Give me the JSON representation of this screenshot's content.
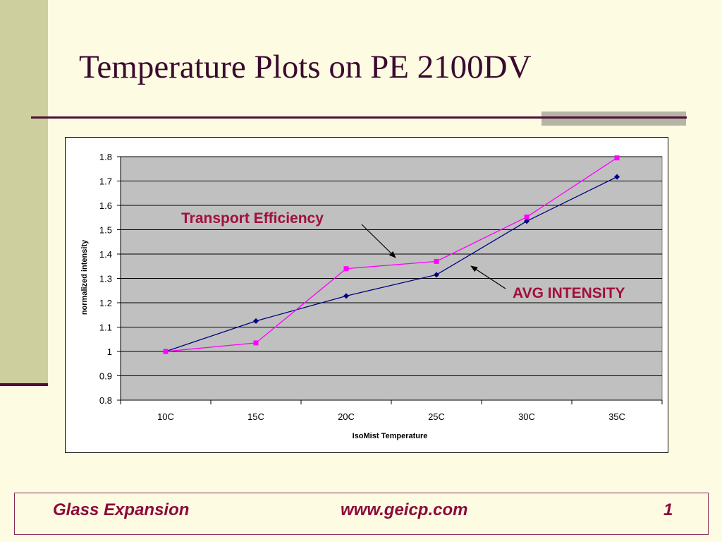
{
  "slide": {
    "title": "Temperature Plots on PE 2100DV"
  },
  "footer": {
    "company": "Glass Expansion",
    "url": "www.geicp.com",
    "page_number": "1"
  },
  "colors": {
    "background": "#FDFBE2",
    "left_bar": "#CECF9E",
    "accent_dark": "#4E0E3A",
    "footer_text": "#8C0B3A",
    "plot_area": "#C0C0C0",
    "series_avg_intensity": "#000080",
    "series_transport_efficiency": "#FF00FF",
    "annotation_text": "#A0103C"
  },
  "chart_data": {
    "type": "line",
    "categories": [
      "10C",
      "15C",
      "20C",
      "25C",
      "30C",
      "35C"
    ],
    "series": [
      {
        "name": "AVG INTENSITY",
        "marker": "diamond",
        "color": "#000080",
        "values": [
          1.0,
          1.125,
          1.228,
          1.315,
          1.535,
          1.717
        ]
      },
      {
        "name": "Transport Efficiency",
        "marker": "square",
        "color": "#FF00FF",
        "values": [
          1.0,
          1.035,
          1.34,
          1.37,
          1.552,
          1.795
        ]
      }
    ],
    "xlabel": "IsoMist Temperature",
    "ylabel": "normalized intensity",
    "ylim": [
      0.8,
      1.8
    ],
    "yticks": [
      "0.8",
      "0.9",
      "1",
      "1.1",
      "1.2",
      "1.3",
      "1.4",
      "1.5",
      "1.6",
      "1.7",
      "1.8"
    ],
    "grid": true,
    "legend": "none",
    "annotations": [
      "Transport Efficiency",
      "AVG INTENSITY"
    ]
  }
}
